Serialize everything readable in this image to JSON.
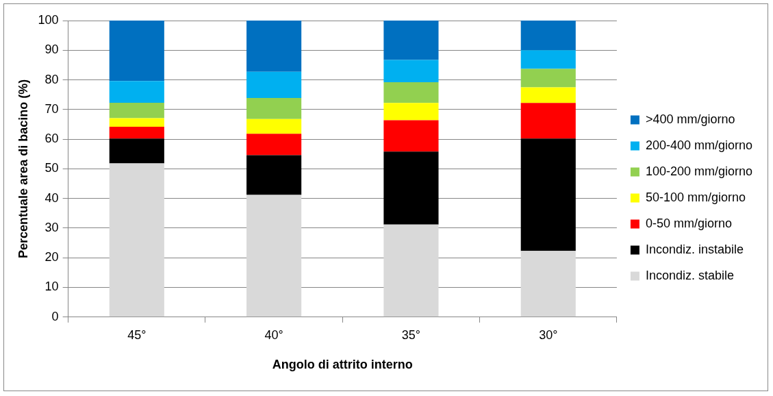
{
  "chart_data": {
    "type": "bar",
    "stacked": true,
    "xlabel": "Angolo di attrito interno",
    "ylabel": "Percentuale area di bacino (%)",
    "categories": [
      "45°",
      "40°",
      "35°",
      "30°"
    ],
    "series": [
      {
        "name": "Incondiz. stabile",
        "color": "#d9d9d9",
        "values": [
          51.8,
          41.2,
          31.2,
          22.3
        ]
      },
      {
        "name": "Incondiz. instabile",
        "color": "#000000",
        "values": [
          8.4,
          13.4,
          24.6,
          37.9
        ]
      },
      {
        "name": "0-50 mm/giorno",
        "color": "#ff0000",
        "values": [
          4.0,
          7.2,
          10.6,
          12.0
        ]
      },
      {
        "name": "50-100 mm/giorno",
        "color": "#ffff00",
        "values": [
          2.9,
          5.0,
          5.8,
          5.3
        ]
      },
      {
        "name": "100-200 mm/giorno",
        "color": "#92d050",
        "values": [
          5.2,
          7.1,
          7.0,
          6.2
        ]
      },
      {
        "name": "200-400 mm/giorno",
        "color": "#00b0f0",
        "values": [
          7.3,
          8.8,
          7.5,
          6.3
        ]
      },
      {
        "name": ">400 mm/giorno",
        "color": "#0070c0",
        "values": [
          20.4,
          17.3,
          13.3,
          10.0
        ]
      }
    ],
    "ylim": [
      0,
      100
    ],
    "yticks": [
      0,
      10,
      20,
      30,
      40,
      50,
      60,
      70,
      80,
      90,
      100
    ],
    "grid": "y",
    "legend": "right"
  }
}
